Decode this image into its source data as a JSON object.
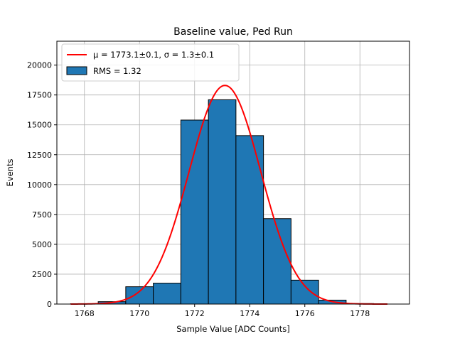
{
  "chart_data": {
    "type": "bar",
    "title": "Baseline value, Ped Run",
    "xlabel": "Sample Value [ADC Counts]",
    "ylabel": "Events",
    "xlim": [
      1767.0,
      1779.8
    ],
    "ylim": [
      0,
      22000
    ],
    "x_ticks": [
      1768,
      1770,
      1772,
      1774,
      1776,
      1778
    ],
    "y_ticks": [
      0,
      2500,
      5000,
      7500,
      10000,
      12500,
      15000,
      17500,
      20000
    ],
    "x_tick_labels": [
      "1768",
      "1770",
      "1772",
      "1774",
      "1776",
      "1778"
    ],
    "y_tick_labels": [
      "0",
      "2500",
      "5000",
      "7500",
      "10000",
      "12500",
      "15000",
      "17500",
      "20000"
    ],
    "grid": true,
    "legend_position": "top-left",
    "histogram": {
      "name": "RMS = 1.32",
      "color": "#1f77b4",
      "edge_color": "#000000",
      "bins": [
        {
          "x0": 1767.5,
          "x1": 1768.5,
          "count": 30
        },
        {
          "x0": 1768.5,
          "x1": 1769.5,
          "count": 200
        },
        {
          "x0": 1769.5,
          "x1": 1770.5,
          "count": 1450
        },
        {
          "x0": 1770.5,
          "x1": 1771.5,
          "count": 1750
        },
        {
          "x0": 1771.5,
          "x1": 1772.5,
          "count": 15400
        },
        {
          "x0": 1772.5,
          "x1": 1773.5,
          "count": 17100
        },
        {
          "x0": 1773.5,
          "x1": 1774.5,
          "count": 14100
        },
        {
          "x0": 1774.5,
          "x1": 1775.5,
          "count": 7150
        },
        {
          "x0": 1775.5,
          "x1": 1776.5,
          "count": 2000
        },
        {
          "x0": 1776.5,
          "x1": 1777.5,
          "count": 330
        },
        {
          "x0": 1777.5,
          "x1": 1778.5,
          "count": 40
        }
      ]
    },
    "fit": {
      "name": "μ = 1773.1±0.1, σ = 1.3±0.1",
      "color": "#ff0000",
      "mu": 1773.1,
      "sigma": 1.3,
      "amplitude": 18300,
      "x_range": [
        1767.5,
        1779.0
      ]
    }
  }
}
